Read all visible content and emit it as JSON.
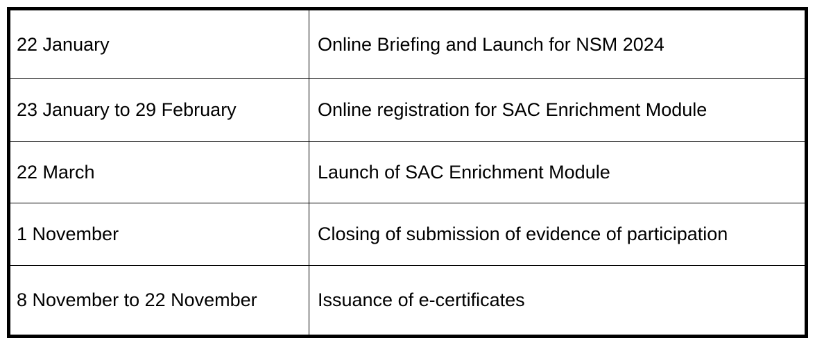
{
  "schedule": {
    "rows": [
      {
        "date": "22 January",
        "event": "Online Briefing and Launch for NSM 2024"
      },
      {
        "date": "23 January to 29 February",
        "event": "Online registration for SAC Enrichment Module"
      },
      {
        "date": "22 March",
        "event": "Launch of SAC Enrichment Module"
      },
      {
        "date": "1 November",
        "event": "Closing of submission of evidence of participation"
      },
      {
        "date": "8 November to 22 November",
        "event": "Issuance of e-certificates"
      }
    ]
  }
}
